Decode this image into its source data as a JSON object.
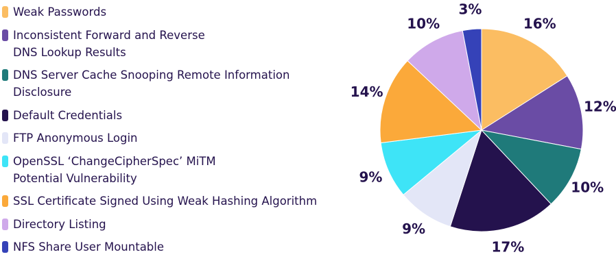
{
  "chart_data": {
    "type": "pie",
    "categories": [
      "Weak Passwords",
      "Inconsistent Forward and Reverse\nDNS Lookup Results",
      "DNS Server Cache Snooping Remote Information\nDisclosure",
      "Default Credentials",
      "FTP Anonymous Login",
      "OpenSSL ‘ChangeCipherSpec’ MiTM\nPotential Vulnerability",
      "SSL Certificate Signed Using Weak Hashing Algorithm",
      "Directory Listing",
      "NFS Share User Mountable"
    ],
    "values": [
      16,
      12,
      10,
      17,
      9,
      9,
      14,
      10,
      3
    ],
    "value_labels": [
      "16%",
      "12%",
      "10%",
      "17%",
      "9%",
      "9%",
      "14%",
      "10%",
      "3%"
    ],
    "colors": [
      "#fbbd62",
      "#6a4ca5",
      "#1f7a7a",
      "#24124d",
      "#e3e6f7",
      "#3ee4f7",
      "#fba93a",
      "#cfa9ea",
      "#3542b8"
    ],
    "legend": "left"
  }
}
